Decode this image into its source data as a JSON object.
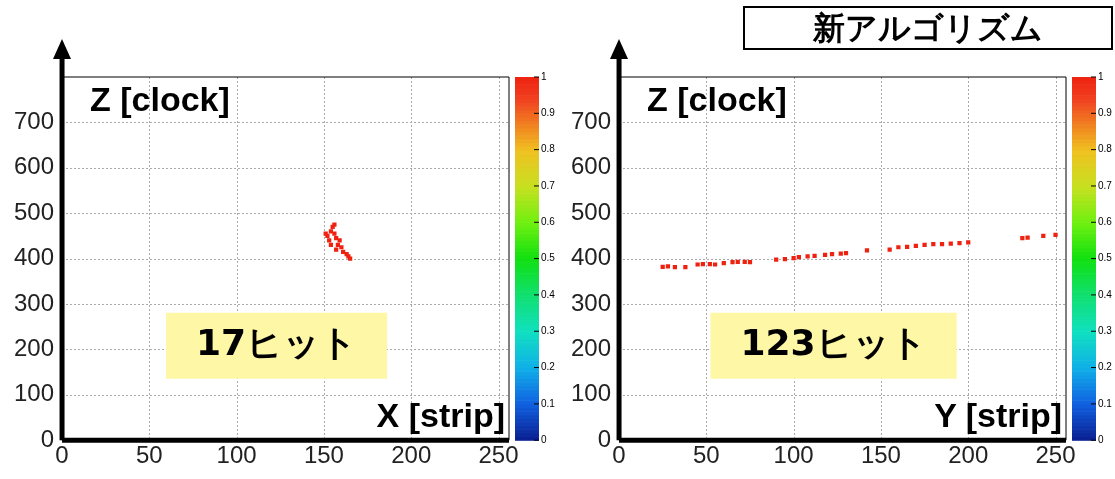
{
  "chart_data": [
    {
      "type": "scatter",
      "xlabel": "X [strip]",
      "ylabel": "Z [clock]",
      "annotations": [
        "17ヒット"
      ],
      "x": [
        151,
        152,
        153,
        154,
        154,
        155,
        156,
        156,
        157,
        157,
        158,
        159,
        160,
        161,
        163,
        164,
        165
      ],
      "values": [
        455,
        450,
        440,
        460,
        430,
        470,
        455,
        475,
        445,
        420,
        430,
        440,
        425,
        415,
        410,
        405,
        400
      ],
      "cvalues": [
        1,
        1,
        1,
        1,
        1,
        1,
        1,
        1,
        1,
        1,
        1,
        1,
        1,
        1,
        1,
        1,
        1
      ],
      "xlim": [
        0,
        256
      ],
      "ylim": [
        0,
        800
      ],
      "xticks": [
        0,
        50,
        100,
        150,
        200,
        250
      ],
      "yticks": [
        0,
        100,
        200,
        300,
        400,
        500,
        600,
        700
      ],
      "clim": [
        0,
        1
      ],
      "cticks": [
        0,
        0.1,
        0.2,
        0.3,
        0.4,
        0.5,
        0.6,
        0.7,
        0.8,
        0.9,
        1
      ],
      "grid": true,
      "marker": "square",
      "legend": false
    },
    {
      "type": "scatter",
      "title": "新アルゴリズム",
      "xlabel": "Y [strip]",
      "ylabel": "Z [clock]",
      "annotations": [
        "123ヒット"
      ],
      "x": [
        25,
        28,
        32,
        38,
        45,
        48,
        52,
        55,
        60,
        65,
        68,
        72,
        75,
        90,
        95,
        100,
        103,
        108,
        112,
        118,
        122,
        127,
        130,
        142,
        155,
        160,
        165,
        170,
        175,
        180,
        185,
        190,
        195,
        200,
        231,
        234,
        243,
        250
      ],
      "values": [
        382,
        383,
        381,
        381,
        387,
        388,
        388,
        387,
        390,
        392,
        393,
        393,
        392,
        398,
        399,
        401,
        403,
        405,
        406,
        408,
        410,
        411,
        412,
        418,
        420,
        425,
        426,
        428,
        430,
        432,
        432,
        433,
        434,
        436,
        445,
        446,
        450,
        452
      ],
      "cvalues": [
        1,
        1,
        1,
        1,
        1,
        1,
        1,
        1,
        1,
        1,
        1,
        1,
        1,
        1,
        1,
        1,
        1,
        1,
        1,
        1,
        1,
        1,
        1,
        1,
        1,
        1,
        1,
        1,
        1,
        1,
        1,
        1,
        1,
        1,
        1,
        1,
        1,
        1
      ],
      "xlim": [
        0,
        256
      ],
      "ylim": [
        0,
        800
      ],
      "xticks": [
        0,
        50,
        100,
        150,
        200,
        250
      ],
      "yticks": [
        0,
        100,
        200,
        300,
        400,
        500,
        600,
        700
      ],
      "clim": [
        0,
        1
      ],
      "cticks": [
        0,
        0.1,
        0.2,
        0.3,
        0.4,
        0.5,
        0.6,
        0.7,
        0.8,
        0.9,
        1
      ],
      "grid": true,
      "marker": "square",
      "legend": false
    }
  ]
}
